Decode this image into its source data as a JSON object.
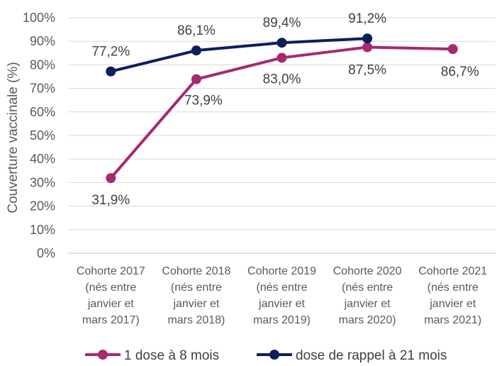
{
  "chart_data": {
    "type": "line",
    "ylabel": "Couverture vaccinale (%)",
    "ylim": [
      0,
      100
    ],
    "yticks": [
      "0%",
      "10%",
      "20%",
      "30%",
      "40%",
      "50%",
      "60%",
      "70%",
      "80%",
      "90%",
      "100%"
    ],
    "categories": [
      [
        "Cohorte 2017",
        "(nés entre",
        "janvier et",
        "mars 2017)"
      ],
      [
        "Cohorte 2018",
        "(nés entre",
        "janvier et",
        "mars 2018)"
      ],
      [
        "Cohorte 2019",
        "(nés entre",
        "janvier et",
        "mars 2019)"
      ],
      [
        "Cohorte 2020",
        "(nés entre",
        "janvier et",
        "mars 2020)"
      ],
      [
        "Cohorte 2021",
        "(nés entre",
        "janvier et",
        "mars 2021)"
      ]
    ],
    "series": [
      {
        "name": "1 dose à 8 mois",
        "color": "#a7296f",
        "values": [
          31.9,
          73.9,
          83.0,
          87.5,
          86.7
        ],
        "labels": [
          "31,9%",
          "73,9%",
          "83,0%",
          "87,5%",
          "86,7%"
        ]
      },
      {
        "name": "dose de rappel à 21 mois",
        "color": "#0d1e5c",
        "values": [
          77.2,
          86.1,
          89.4,
          91.2,
          null
        ],
        "labels": [
          "77,2%",
          "86,1%",
          "89,4%",
          "91,2%",
          null
        ]
      }
    ],
    "grid": true,
    "legend": "bottom"
  }
}
